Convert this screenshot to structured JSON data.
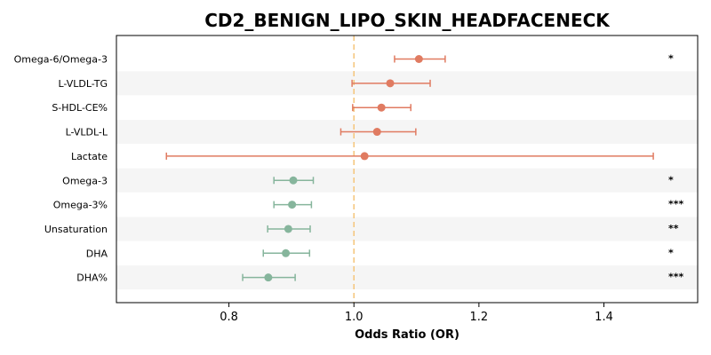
{
  "chart_data": {
    "type": "forest",
    "title": "CD2_BENIGN_LIPO_SKIN_HEADFACENECK",
    "xlabel": "Odds Ratio (OR)",
    "xlim": [
      0.62,
      1.55
    ],
    "xticks": [
      "0.8",
      "1.0",
      "1.2",
      "1.4"
    ],
    "reference_line": 1.0,
    "colors": {
      "positive": "#e07b61",
      "negative": "#86b59c",
      "reference": "#f5c57a",
      "band": "#f5f5f5"
    },
    "rows": [
      {
        "label": "Omega-6/Omega-3",
        "or": 1.104,
        "lo": 1.065,
        "hi": 1.146,
        "sig": "*"
      },
      {
        "label": "L-VLDL-TG",
        "or": 1.058,
        "lo": 0.997,
        "hi": 1.122,
        "sig": ""
      },
      {
        "label": "S-HDL-CE%",
        "or": 1.044,
        "lo": 0.998,
        "hi": 1.091,
        "sig": ""
      },
      {
        "label": "L-VLDL-L",
        "or": 1.037,
        "lo": 0.979,
        "hi": 1.099,
        "sig": ""
      },
      {
        "label": "Lactate",
        "or": 1.017,
        "lo": 0.7,
        "hi": 1.479,
        "sig": ""
      },
      {
        "label": "Omega-3",
        "or": 0.903,
        "lo": 0.872,
        "hi": 0.935,
        "sig": "*"
      },
      {
        "label": "Omega-3%",
        "or": 0.901,
        "lo": 0.872,
        "hi": 0.932,
        "sig": "***"
      },
      {
        "label": "Unsaturation",
        "or": 0.895,
        "lo": 0.862,
        "hi": 0.93,
        "sig": "**"
      },
      {
        "label": "DHA",
        "or": 0.891,
        "lo": 0.855,
        "hi": 0.929,
        "sig": "*"
      },
      {
        "label": "DHA%",
        "or": 0.863,
        "lo": 0.822,
        "hi": 0.906,
        "sig": "***"
      }
    ]
  }
}
